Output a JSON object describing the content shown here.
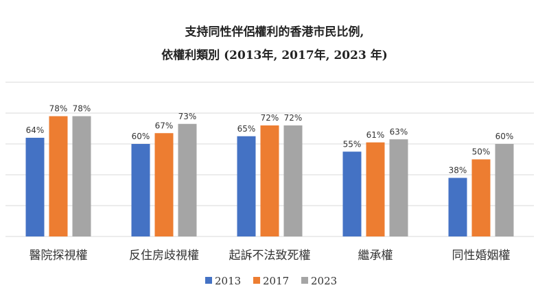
{
  "chart_data": {
    "type": "bar",
    "title": "支持同性伴侶權利的香港市民比例,",
    "subtitle": "依權利類別 (2013年, 2017年, 2023 年)",
    "categories": [
      "醫院探視權",
      "反住房歧視權",
      "起訴不法致死權",
      "繼承權",
      "同性婚姻權"
    ],
    "series": [
      {
        "name": "2013",
        "color": "#4472c4",
        "values": [
          64,
          60,
          65,
          55,
          38
        ],
        "labels": [
          "64%",
          "60%",
          "65%",
          "55%",
          "38%"
        ]
      },
      {
        "name": "2017",
        "color": "#ed7d31",
        "values": [
          78,
          67,
          72,
          61,
          50
        ],
        "labels": [
          "78%",
          "67%",
          "72%",
          "61%",
          "50%"
        ]
      },
      {
        "name": "2023",
        "color": "#a5a5a5",
        "values": [
          78,
          73,
          72,
          63,
          60
        ],
        "labels": [
          "78%",
          "73%",
          "72%",
          "63%",
          "60%"
        ]
      }
    ],
    "ylim": [
      0,
      100
    ],
    "grid": true,
    "gridline_color": "#d9d9d9",
    "legend_position": "bottom"
  }
}
